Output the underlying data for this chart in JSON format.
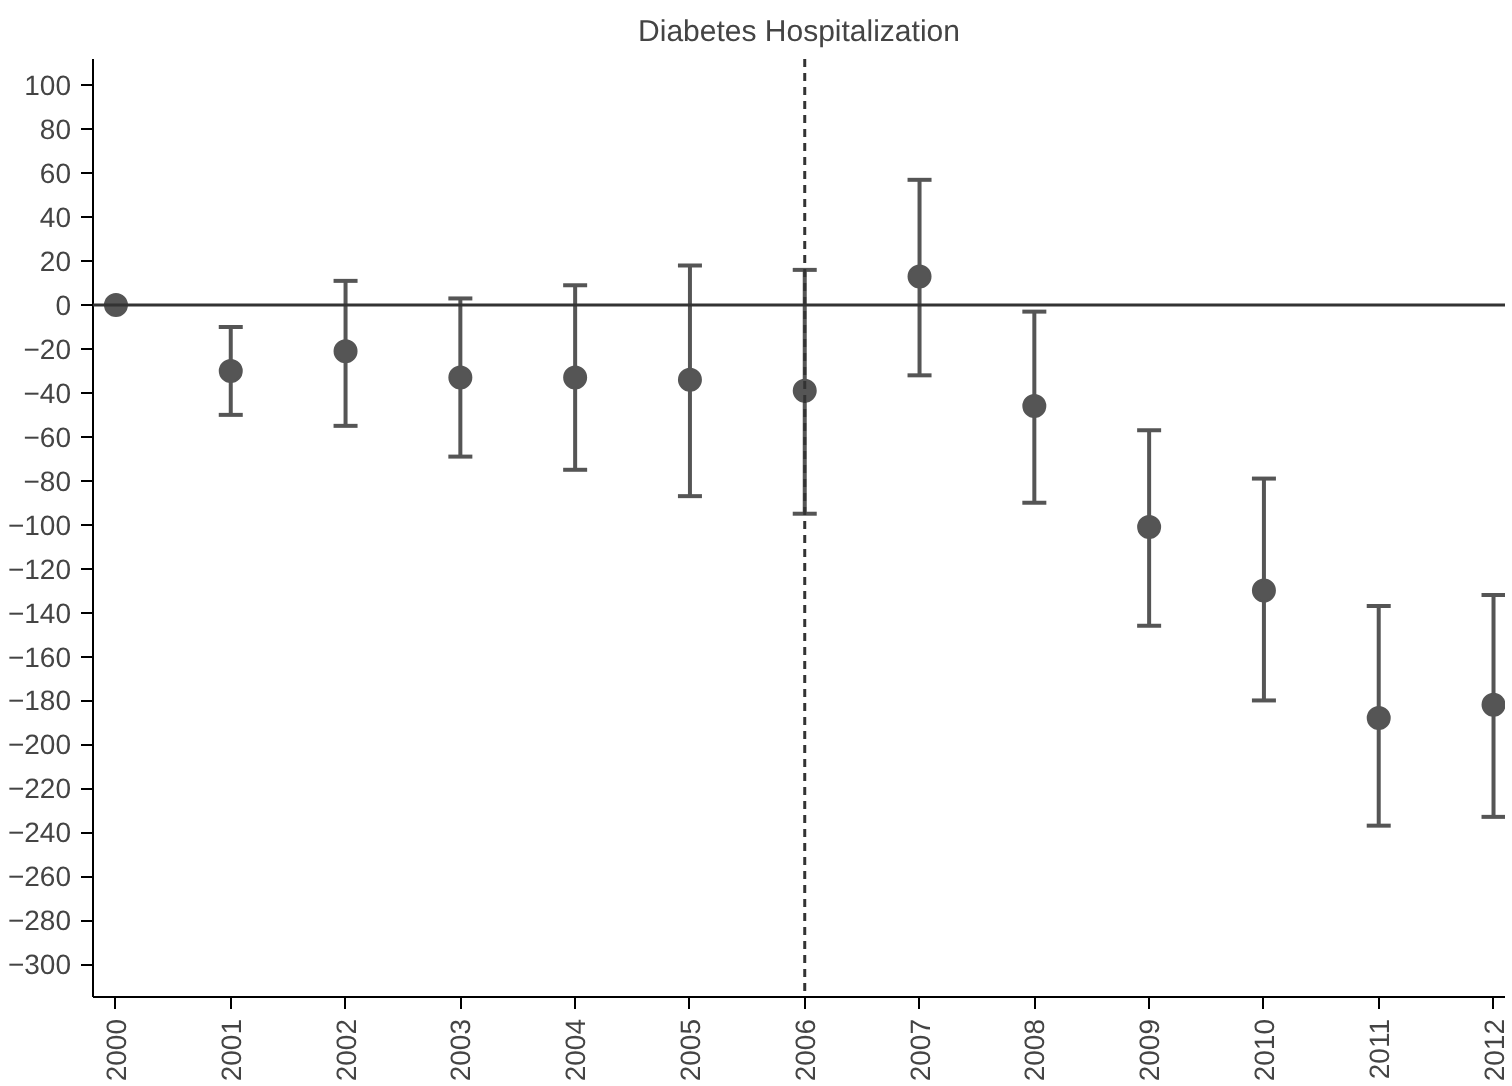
{
  "chart_data": {
    "type": "scatter",
    "title": "Diabetes Hospitalization",
    "x": [
      2000,
      2001,
      2002,
      2003,
      2004,
      2005,
      2006,
      2007,
      2008,
      2009,
      2010,
      2011,
      2012
    ],
    "series": [
      {
        "color": "#555555",
        "values": [
          0,
          -30,
          -21,
          -33,
          -33,
          -34,
          -39,
          13,
          -46,
          -101,
          -130,
          -188,
          -182
        ],
        "errors": [
          null,
          [
            -50,
            -10
          ],
          [
            -55,
            11
          ],
          [
            -69,
            3
          ],
          [
            -75,
            9
          ],
          [
            -87,
            18
          ],
          [
            -95,
            16
          ],
          [
            -32,
            57
          ],
          [
            -90,
            -3
          ],
          [
            -146,
            -57
          ],
          [
            -180,
            -79
          ],
          [
            -237,
            -137
          ],
          [
            -233,
            -132
          ]
        ]
      }
    ],
    "xlim": [
      1999.8,
      2012.1
    ],
    "ylim": [
      -315,
      112
    ],
    "xticks": [
      2000,
      2001,
      2002,
      2003,
      2004,
      2005,
      2006,
      2007,
      2008,
      2009,
      2010,
      2011,
      2012
    ],
    "yticks": [
      -300,
      -280,
      -260,
      -240,
      -220,
      -200,
      -180,
      -160,
      -140,
      -120,
      -100,
      -80,
      -60,
      -40,
      -20,
      0,
      20,
      40,
      60,
      80,
      100
    ],
    "ref_lines": [
      {
        "axis": "y",
        "value": 0,
        "color": "#333333",
        "line_style": "solid"
      },
      {
        "axis": "x",
        "value": 2006,
        "color": "#333333",
        "line_style": "dashed"
      }
    ],
    "marker": "circle",
    "grid": false
  }
}
